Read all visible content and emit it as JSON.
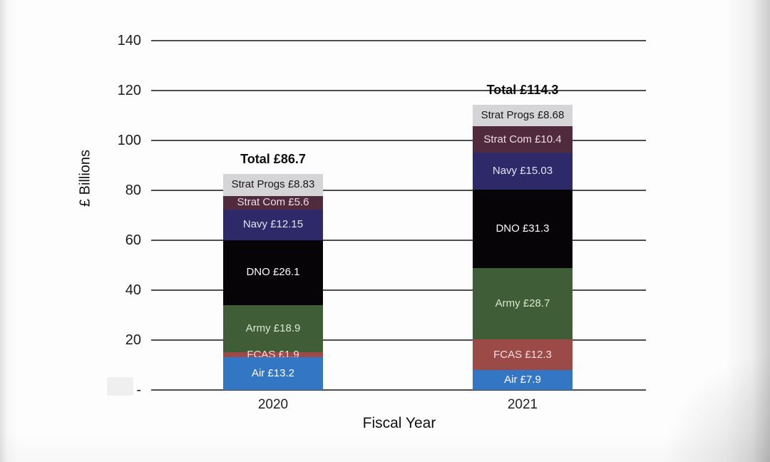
{
  "chart_data": {
    "type": "bar",
    "stacked": true,
    "xlabel": "Fiscal Year",
    "ylabel": "£ Billions",
    "categories": [
      "2020",
      "2021"
    ],
    "ylim": [
      0,
      140
    ],
    "ytick_labels": [
      "140",
      "120",
      "100",
      "80",
      "60",
      "40",
      "20",
      "-"
    ],
    "ytick_values": [
      140,
      120,
      100,
      80,
      60,
      40,
      20,
      0
    ],
    "grid": true,
    "legend": "none",
    "totals": [
      {
        "label": "Total £86.7",
        "value": 86.7
      },
      {
        "label": "Total £114.3",
        "value": 114.3
      }
    ],
    "series": [
      {
        "name": "Air",
        "values": [
          13.2,
          7.9
        ],
        "labels": [
          "Air £13.2",
          "Air £7.9"
        ],
        "color": "#3377c4",
        "text_color": "#ffffff"
      },
      {
        "name": "FCAS",
        "values": [
          1.9,
          12.3
        ],
        "labels": [
          "FCAS £1.9",
          "FCAS £12.3"
        ],
        "color": "#9c4a47",
        "text_color": "#f5dede"
      },
      {
        "name": "Army",
        "values": [
          18.9,
          28.7
        ],
        "labels": [
          "Army £18.9",
          "Army £28.7"
        ],
        "color": "#3f5d36",
        "text_color": "#d8e8d1"
      },
      {
        "name": "DNO",
        "values": [
          26.1,
          31.3
        ],
        "labels": [
          "DNO £26.1",
          "DNO £31.3"
        ],
        "color": "#060406",
        "text_color": "#fbfbfb"
      },
      {
        "name": "Navy",
        "values": [
          12.15,
          15.03
        ],
        "labels": [
          "Navy £12.15",
          "Navy £15.03"
        ],
        "color": "#2e2a69",
        "text_color": "#e4e1f4"
      },
      {
        "name": "Strat Com",
        "values": [
          5.6,
          10.4
        ],
        "labels": [
          "Strat Com £5.6",
          "Strat Com £10.4"
        ],
        "color": "#502b3d",
        "text_color": "#efdbe5"
      },
      {
        "name": "Strat Progs",
        "values": [
          8.83,
          8.68
        ],
        "labels": [
          "Strat Progs £8.83",
          "Strat Progs £8.68"
        ],
        "color": "#d5d4d6",
        "text_color": "#19171a"
      }
    ]
  }
}
